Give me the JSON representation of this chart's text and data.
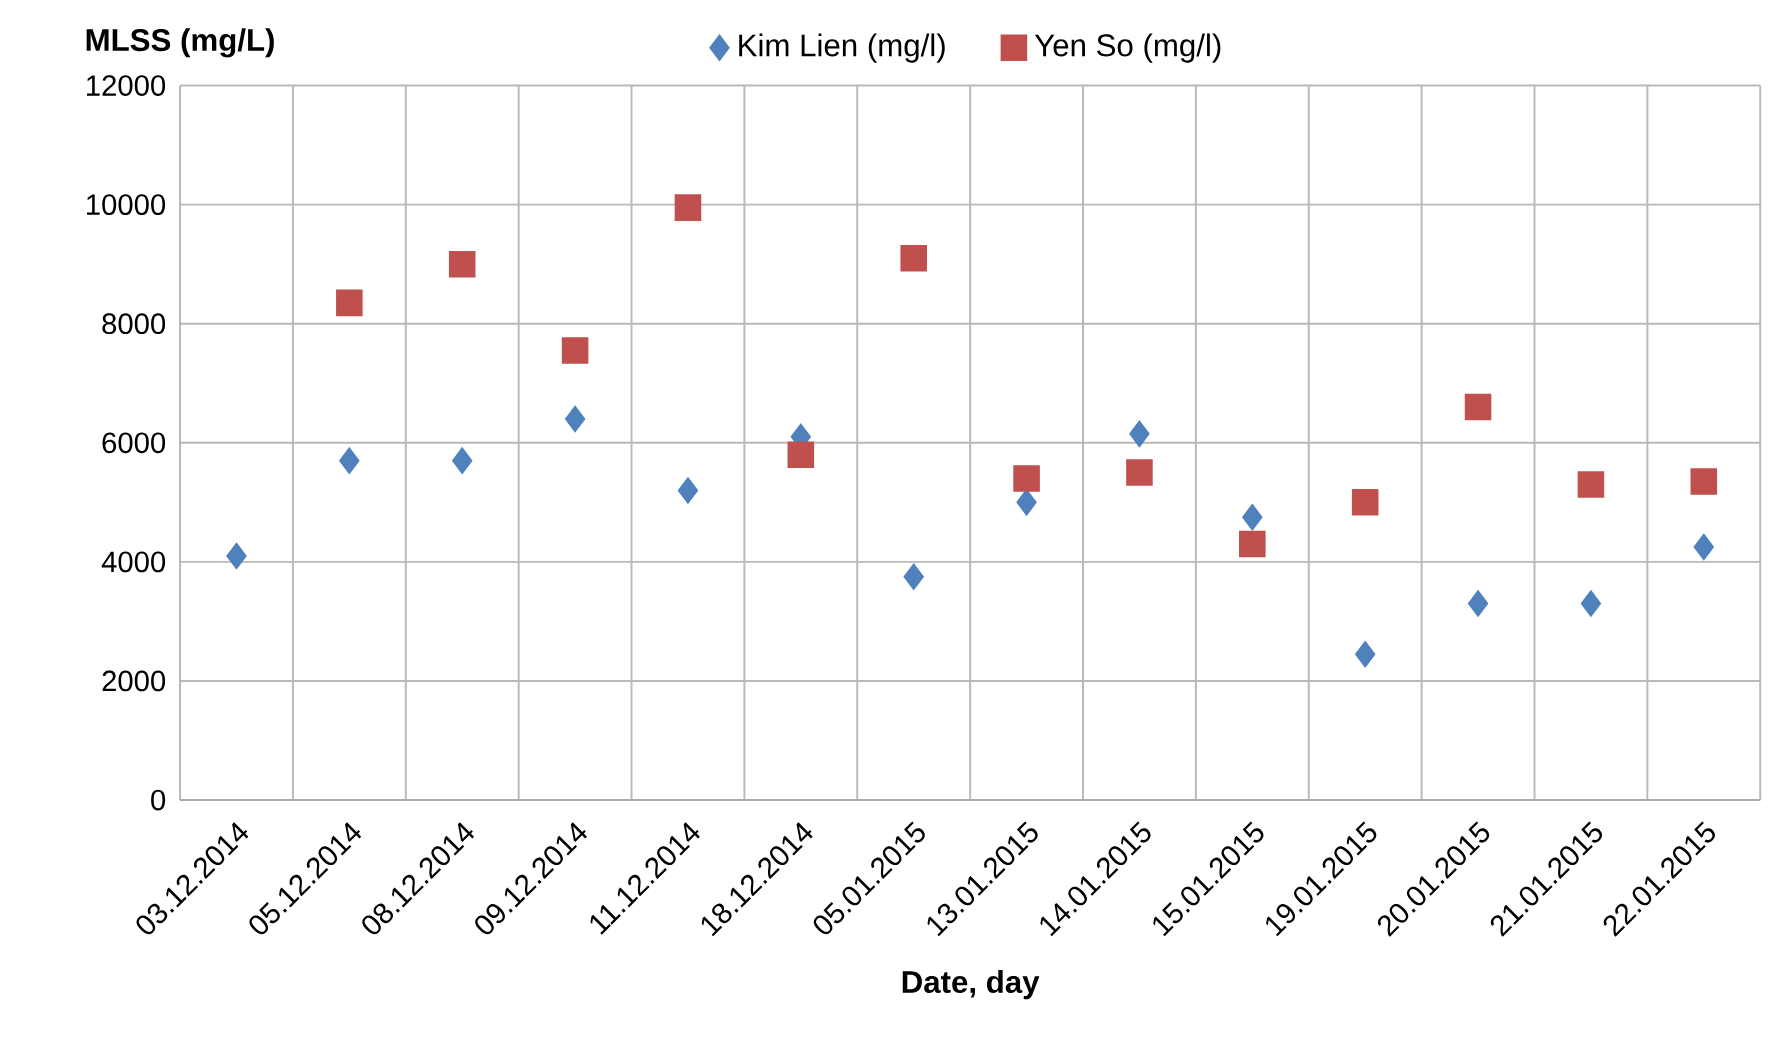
{
  "chart_data": {
    "type": "scatter",
    "xlabel": "Date, day",
    "ylabel": "MLSS (mg/L)",
    "categories": [
      "03.12.2014",
      "05.12.2014",
      "08.12.2014",
      "09.12.2014",
      "11.12.2014",
      "18.12.2014",
      "05.01.2015",
      "13.01.2015",
      "14.01.2015",
      "15.01.2015",
      "19.01.2015",
      "20.01.2015",
      "21.01.2015",
      "22.01.2015"
    ],
    "series": [
      {
        "name": "Kim Lien (mg/l)",
        "color": "#4f81bd",
        "marker": "diamond",
        "values": [
          4100,
          5700,
          5700,
          6400,
          5200,
          6100,
          3750,
          5000,
          6150,
          4750,
          2450,
          3300,
          3300,
          4250
        ]
      },
      {
        "name": "Yen So (mg/l)",
        "color": "#c0504d",
        "marker": "square",
        "values": [
          null,
          8350,
          9000,
          7550,
          9950,
          5800,
          9100,
          5400,
          5500,
          4300,
          5000,
          6600,
          5300,
          5350
        ]
      }
    ],
    "ylim": [
      0,
      12000
    ],
    "yticks": [
      0,
      2000,
      4000,
      6000,
      8000,
      10000,
      12000
    ],
    "grid": true,
    "legend": "top"
  }
}
